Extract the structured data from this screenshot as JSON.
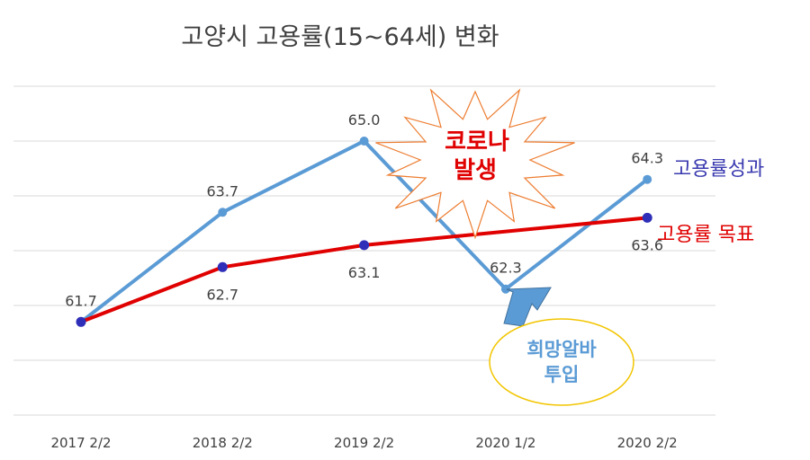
{
  "chart_data": {
    "type": "line",
    "title": "고양시 고용률(15~64세) 변화",
    "categories": [
      "2017 2/2",
      "2018 2/2",
      "2019 2/2",
      "2020 1/2",
      "2020 2/2"
    ],
    "ylim": [
      60,
      66
    ],
    "grid": true,
    "series": [
      {
        "name": "고용률성과",
        "color": "#5B9BD5",
        "marker": "#5B9BD5",
        "values": [
          61.7,
          63.7,
          65.0,
          62.3,
          64.3
        ],
        "labels": [
          "61.7",
          "63.7",
          "65.0",
          "62.3",
          "64.3"
        ]
      },
      {
        "name": "고용률 목표",
        "color": "#E00000",
        "marker": "#2E2EB8",
        "values": [
          61.7,
          62.7,
          63.1,
          null,
          63.6
        ],
        "labels": [
          "",
          "62.7",
          "63.1",
          "",
          "63.6"
        ]
      }
    ],
    "legend_colors": [
      "#3A3AB0",
      "#E00000"
    ],
    "annotations": {
      "burst": {
        "line1": "코로나",
        "line2": "발생",
        "color": "#E00000",
        "outline": "#ED7D31"
      },
      "callout": {
        "line1": "희망알바",
        "line2": "투입",
        "color": "#5B9BD5",
        "outline": "#F2C500"
      }
    }
  }
}
